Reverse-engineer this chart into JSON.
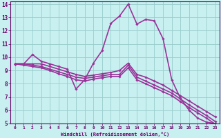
{
  "xlabel": "Windchill (Refroidissement éolien,°C)",
  "background_color": "#c8f0f0",
  "line_color": "#993399",
  "grid_color": "#99cccc",
  "text_color": "#660066",
  "spine_color": "#660066",
  "xlim": [
    -0.5,
    23.5
  ],
  "ylim": [
    5,
    14.2
  ],
  "xticks": [
    0,
    1,
    2,
    3,
    4,
    5,
    6,
    7,
    8,
    9,
    10,
    11,
    12,
    13,
    14,
    15,
    16,
    17,
    18,
    19,
    20,
    21,
    22,
    23
  ],
  "yticks": [
    5,
    6,
    7,
    8,
    9,
    10,
    11,
    12,
    13,
    14
  ],
  "series": [
    {
      "x": [
        0,
        1,
        2,
        3,
        4,
        5,
        6,
        7,
        8,
        9,
        10,
        11,
        12,
        13,
        14,
        15,
        16,
        17,
        18,
        19,
        20,
        21,
        22,
        23
      ],
      "y": [
        9.5,
        9.5,
        10.2,
        9.7,
        9.5,
        9.3,
        9.1,
        7.6,
        8.3,
        9.55,
        10.5,
        12.55,
        13.1,
        14.0,
        12.5,
        12.85,
        12.75,
        11.4,
        8.3,
        6.9,
        6.0,
        5.4,
        5.1,
        5.0
      ]
    },
    {
      "x": [
        0,
        1,
        2,
        3,
        4,
        5,
        6,
        7,
        8,
        9,
        10,
        11,
        12,
        13,
        14,
        15,
        16,
        17,
        18,
        19,
        20,
        21,
        22,
        23
      ],
      "y": [
        9.5,
        9.5,
        9.5,
        9.5,
        9.3,
        9.1,
        8.9,
        8.7,
        8.55,
        8.65,
        8.75,
        8.85,
        9.0,
        9.55,
        8.7,
        8.5,
        8.2,
        7.9,
        7.5,
        7.1,
        6.7,
        6.3,
        5.9,
        5.5
      ]
    },
    {
      "x": [
        0,
        1,
        2,
        3,
        4,
        5,
        6,
        7,
        8,
        9,
        10,
        11,
        12,
        13,
        14,
        15,
        16,
        17,
        18,
        19,
        20,
        21,
        22,
        23
      ],
      "y": [
        9.5,
        9.5,
        9.4,
        9.3,
        9.1,
        8.9,
        8.7,
        8.5,
        8.4,
        8.5,
        8.6,
        8.7,
        8.7,
        9.4,
        8.5,
        8.2,
        7.9,
        7.6,
        7.3,
        6.85,
        6.4,
        6.0,
        5.6,
        5.15
      ]
    },
    {
      "x": [
        0,
        1,
        2,
        3,
        4,
        5,
        6,
        7,
        8,
        9,
        10,
        11,
        12,
        13,
        14,
        15,
        16,
        17,
        18,
        19,
        20,
        21,
        22,
        23
      ],
      "y": [
        9.5,
        9.4,
        9.3,
        9.2,
        9.0,
        8.75,
        8.55,
        8.3,
        8.2,
        8.35,
        8.45,
        8.55,
        8.55,
        9.2,
        8.3,
        8.0,
        7.7,
        7.4,
        7.1,
        6.65,
        6.2,
        5.8,
        5.4,
        4.95
      ]
    }
  ]
}
